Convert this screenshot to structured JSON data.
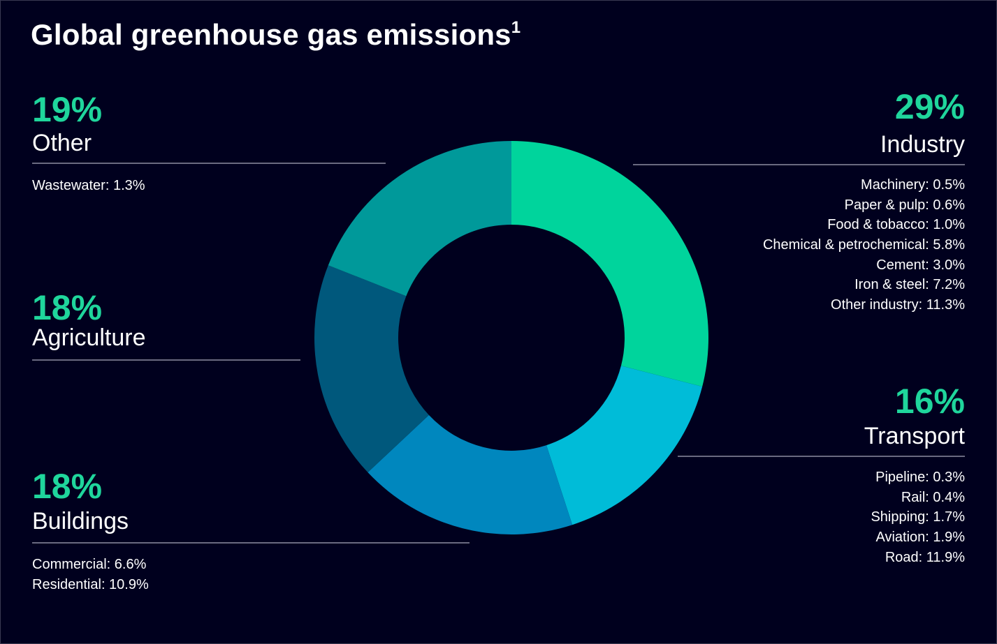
{
  "title": "Global greenhouse gas emissions",
  "title_superscript": "1",
  "chart_data": {
    "type": "pie",
    "style": "donut",
    "title": "Global greenhouse gas emissions",
    "start": "12 o'clock, clockwise",
    "slices": [
      {
        "name": "Industry",
        "value": 29,
        "label": "29%",
        "color": "#00d49c",
        "breakdown": [
          "Machinery: 0.5%",
          "Paper & pulp: 0.6%",
          "Food & tobacco: 1.0%",
          "Chemical & petrochemical: 5.8%",
          "Cement: 3.0%",
          "Iron & steel: 7.2%",
          "Other industry: 11.3%"
        ]
      },
      {
        "name": "Transport",
        "value": 16,
        "label": "16%",
        "color": "#00bcd8",
        "breakdown": [
          "Pipeline: 0.3%",
          "Rail: 0.4%",
          "Shipping: 1.7%",
          "Aviation: 1.9%",
          "Road: 11.9%"
        ]
      },
      {
        "name": "Buildings",
        "value": 18,
        "label": "18%",
        "color": "#0087be",
        "breakdown": [
          "Commercial: 6.6%",
          "Residential: 10.9%"
        ]
      },
      {
        "name": "Agriculture",
        "value": 18,
        "label": "18%",
        "color": "#00587c",
        "breakdown": []
      },
      {
        "name": "Other",
        "value": 19,
        "label": "19%",
        "color": "#00999a",
        "breakdown": [
          "Wastewater: 1.3%"
        ]
      }
    ]
  },
  "colors": {
    "background": "#00001e",
    "accent": "#1fd69c",
    "divider": "#6a6a80"
  }
}
